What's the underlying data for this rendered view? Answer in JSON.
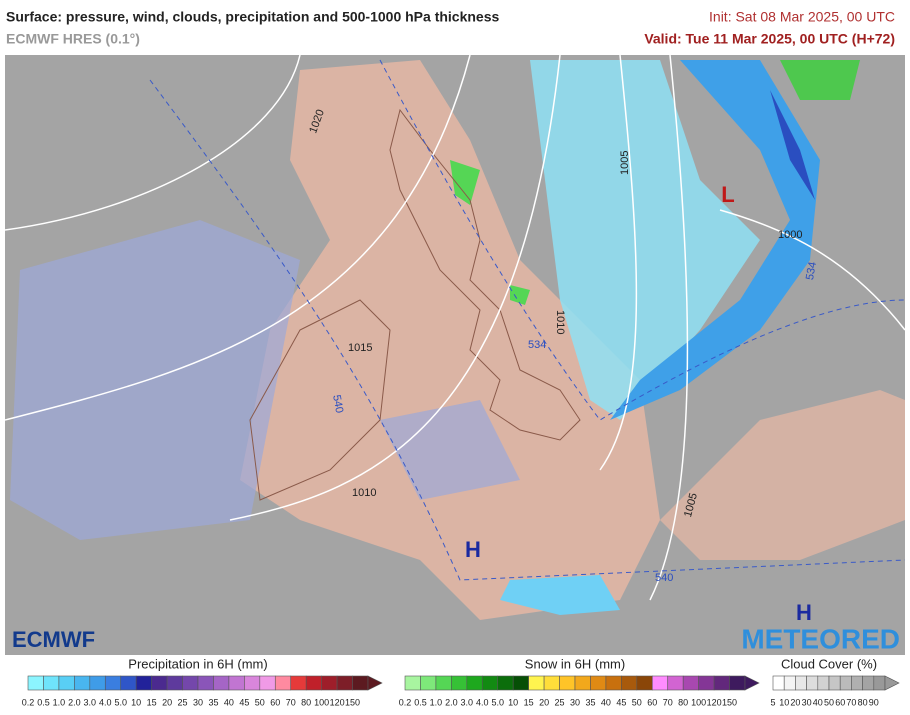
{
  "header": {
    "title": "Surface: pressure, wind, clouds, precipitation and 500-1000 hPa thickness",
    "model": "ECMWF HRES (0.1°)",
    "init": "Init: Sat 08 Mar 2025, 00 UTC",
    "valid": "Valid: Tue 11 Mar 2025, 00 UTC (H+72)"
  },
  "map": {
    "isobars": [
      "1020",
      "1015",
      "1010",
      "1005",
      "1000",
      "1010",
      "1005"
    ],
    "thickness": [
      "540",
      "534",
      "534",
      "540"
    ],
    "centers": [
      "L",
      "H",
      "H"
    ]
  },
  "logos": {
    "left": "ECMWF",
    "right": "METEORED"
  },
  "legends": [
    {
      "title": "Precipitation in 6H (mm)",
      "labels": [
        "0.2",
        "0.5",
        "1.0",
        "2.0",
        "3.0",
        "4.0",
        "5.0",
        "10",
        "15",
        "20",
        "25",
        "30",
        "35",
        "40",
        "45",
        "50",
        "60",
        "70",
        "80",
        "100",
        "120",
        "150"
      ],
      "colors": [
        "#8cf5ff",
        "#6fe4fb",
        "#59cff5",
        "#49b6ef",
        "#3f9ce8",
        "#3a7ee0",
        "#2f56c8",
        "#22229a",
        "#4b2a8f",
        "#5e3a9d",
        "#7447ab",
        "#8a55b9",
        "#a565c6",
        "#c175d2",
        "#d986dc",
        "#f09ae6",
        "#ff8aa0",
        "#e63a3a",
        "#c0202a",
        "#9e1e2a",
        "#7d1e28",
        "#5c1a20"
      ]
    },
    {
      "title": "Snow in 6H (mm)",
      "labels": [
        "0.2",
        "0.5",
        "1.0",
        "2.0",
        "3.0",
        "4.0",
        "5.0",
        "10",
        "15",
        "20",
        "25",
        "30",
        "35",
        "40",
        "45",
        "50",
        "60",
        "70",
        "80",
        "100",
        "120",
        "150"
      ],
      "colors": [
        "#a8f5a0",
        "#7ee87a",
        "#55d655",
        "#36c136",
        "#1ea81e",
        "#128a12",
        "#0b6e0b",
        "#064f06",
        "#fff44f",
        "#ffde3a",
        "#ffc428",
        "#f2a81c",
        "#e08a14",
        "#c8700e",
        "#a85a0c",
        "#8a4608",
        "#ff8cff",
        "#d264d2",
        "#a848b0",
        "#843696",
        "#62287c",
        "#3e1a5e"
      ]
    },
    {
      "title": "Cloud Cover (%)",
      "labels": [
        "5",
        "10",
        "20",
        "30",
        "40",
        "50",
        "60",
        "70",
        "80",
        "90"
      ],
      "colors": [
        "#ffffff",
        "#f4f4f4",
        "#e8e8e8",
        "#dddddd",
        "#d2d2d2",
        "#c6c6c6",
        "#bbbbbb",
        "#b0b0b0",
        "#a4a4a4",
        "#999999"
      ]
    }
  ]
}
